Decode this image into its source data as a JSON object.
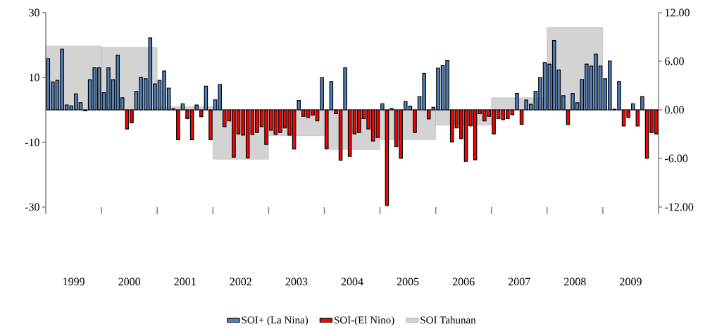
{
  "chart_data": {
    "type": "bar",
    "x": [
      1999.042,
      1999.125,
      1999.208,
      1999.292,
      1999.375,
      1999.458,
      1999.542,
      1999.625,
      1999.708,
      1999.792,
      1999.875,
      1999.958,
      2000.042,
      2000.125,
      2000.208,
      2000.292,
      2000.375,
      2000.458,
      2000.542,
      2000.625,
      2000.708,
      2000.792,
      2000.875,
      2000.958,
      2001.042,
      2001.125,
      2001.208,
      2001.292,
      2001.375,
      2001.458,
      2001.542,
      2001.625,
      2001.708,
      2001.792,
      2001.875,
      2001.958,
      2002.042,
      2002.125,
      2002.208,
      2002.292,
      2002.375,
      2002.458,
      2002.542,
      2002.625,
      2002.708,
      2002.792,
      2002.875,
      2002.958,
      2003.042,
      2003.125,
      2003.208,
      2003.292,
      2003.375,
      2003.458,
      2003.542,
      2003.625,
      2003.708,
      2003.792,
      2003.875,
      2003.958,
      2004.042,
      2004.125,
      2004.208,
      2004.292,
      2004.375,
      2004.458,
      2004.542,
      2004.625,
      2004.708,
      2004.792,
      2004.875,
      2004.958,
      2005.042,
      2005.125,
      2005.208,
      2005.292,
      2005.375,
      2005.458,
      2005.542,
      2005.625,
      2005.708,
      2005.792,
      2005.875,
      2005.958,
      2006.042,
      2006.125,
      2006.208,
      2006.292,
      2006.375,
      2006.458,
      2006.542,
      2006.625,
      2006.708,
      2006.792,
      2006.875,
      2006.958,
      2007.042,
      2007.125,
      2007.208,
      2007.292,
      2007.375,
      2007.458,
      2007.542,
      2007.625,
      2007.708,
      2007.792,
      2007.875,
      2007.958,
      2008.042,
      2008.125,
      2008.208,
      2008.292,
      2008.375,
      2008.458,
      2008.542,
      2008.625,
      2008.708,
      2008.792,
      2008.875,
      2008.958,
      2009.042,
      2009.125,
      2009.208,
      2009.292,
      2009.375,
      2009.458,
      2009.542,
      2009.625,
      2009.708,
      2009.792,
      2009.875,
      2009.958
    ],
    "series": [
      {
        "name": "SOI+ (La Nina)",
        "color": "#4f81bd",
        "values": [
          15.8,
          8.6,
          9.1,
          18.7,
          1.5,
          1.2,
          4.9,
          2.2,
          null,
          9.3,
          13.0,
          13.0,
          5.3,
          13.0,
          9.3,
          16.9,
          3.7,
          null,
          null,
          5.7,
          10.1,
          9.6,
          22.2,
          8.0,
          9.1,
          12.0,
          6.7,
          0.3,
          null,
          1.9,
          null,
          null,
          1.5,
          null,
          7.3,
          null,
          3.1,
          7.8,
          null,
          null,
          null,
          null,
          null,
          null,
          null,
          null,
          null,
          null,
          null,
          null,
          null,
          null,
          null,
          null,
          2.9,
          null,
          null,
          null,
          null,
          10.0,
          null,
          8.7,
          null,
          null,
          13.0,
          null,
          null,
          null,
          null,
          null,
          null,
          null,
          1.9,
          null,
          0.4,
          null,
          null,
          2.6,
          1.1,
          null,
          4.1,
          11.2,
          null,
          0.8,
          12.9,
          13.8,
          15.3,
          null,
          null,
          null,
          null,
          null,
          null,
          null,
          null,
          null,
          null,
          null,
          null,
          null,
          null,
          5.1,
          null,
          3.0,
          1.7,
          5.7,
          10.0,
          14.6,
          14.1,
          21.4,
          12.3,
          4.4,
          null,
          5.1,
          2.2,
          9.4,
          14.1,
          13.5,
          17.2,
          13.5,
          9.6,
          15.1,
          0.2,
          8.7,
          null,
          null,
          1.9,
          null,
          4.1,
          null,
          null,
          null
        ]
      },
      {
        "name": "SOI-(El Nino)",
        "color": "#ff0000",
        "values": [
          null,
          null,
          null,
          null,
          null,
          null,
          null,
          null,
          -0.3,
          null,
          null,
          null,
          null,
          null,
          null,
          null,
          null,
          -5.9,
          -4.0,
          null,
          null,
          null,
          null,
          null,
          null,
          null,
          null,
          null,
          -9.2,
          null,
          -2.7,
          -9.2,
          null,
          -2.1,
          null,
          -9.2,
          null,
          null,
          -5.2,
          -3.4,
          -14.6,
          -7.4,
          -7.8,
          -14.8,
          -7.6,
          -7.0,
          -5.2,
          -10.7,
          -6.3,
          -7.6,
          -7.0,
          -5.6,
          -7.8,
          -12.1,
          null,
          -2.0,
          -2.3,
          -1.6,
          -3.4,
          null,
          -12.0,
          null,
          -1.2,
          -15.6,
          null,
          -14.4,
          -7.4,
          -7.0,
          -2.7,
          -5.9,
          -9.6,
          -8.5,
          null,
          -29.5,
          null,
          -11.4,
          -14.9,
          null,
          null,
          -7.0,
          null,
          null,
          -2.8,
          null,
          null,
          null,
          null,
          -9.9,
          -5.6,
          -8.9,
          -15.9,
          -4.9,
          -15.4,
          -1.2,
          -3.4,
          -2.0,
          -7.4,
          -2.7,
          -3.0,
          -2.7,
          -1.5,
          null,
          -4.5,
          null,
          null,
          null,
          null,
          null,
          null,
          null,
          null,
          null,
          -4.5,
          null,
          null,
          null,
          null,
          null,
          null,
          null,
          null,
          null,
          null,
          null,
          -5.0,
          -2.3,
          null,
          -5.0,
          null,
          -14.9,
          -7.0,
          -7.4
        ]
      },
      {
        "name": "SOI Tahunan",
        "color": "#d3d3d3",
        "axis": "y2",
        "x": [
          1999.5,
          2000.5,
          2001.5,
          2002.5,
          2003.5,
          2004.5,
          2005.5,
          2006.5,
          2007.5,
          2008.5
        ],
        "values": [
          7.9,
          7.7,
          0.4,
          -6.1,
          -3.2,
          -4.9,
          -3.7,
          -1.9,
          1.5,
          10.2
        ]
      }
    ],
    "xlim": [
      1999,
      2010
    ],
    "xticks": [
      {
        "value": 1999,
        "label": null
      },
      {
        "value": 1999.5,
        "label": "1999"
      },
      {
        "value": 2000,
        "label": null
      },
      {
        "value": 2000.5,
        "label": "2000"
      },
      {
        "value": 2001,
        "label": null
      },
      {
        "value": 2001.5,
        "label": "2001"
      },
      {
        "value": 2002,
        "label": null
      },
      {
        "value": 2002.5,
        "label": "2002"
      },
      {
        "value": 2003,
        "label": null
      },
      {
        "value": 2003.5,
        "label": "2003"
      },
      {
        "value": 2004,
        "label": null
      },
      {
        "value": 2004.5,
        "label": "2004"
      },
      {
        "value": 2005,
        "label": null
      },
      {
        "value": 2005.5,
        "label": "2005"
      },
      {
        "value": 2006,
        "label": null
      },
      {
        "value": 2006.5,
        "label": "2006"
      },
      {
        "value": 2007,
        "label": null
      },
      {
        "value": 2007.5,
        "label": "2007"
      },
      {
        "value": 2008,
        "label": null
      },
      {
        "value": 2008.5,
        "label": "2008"
      },
      {
        "value": 2009,
        "label": null
      },
      {
        "value": 2009.5,
        "label": "2009"
      },
      {
        "value": 2010,
        "label": null
      }
    ],
    "ylim": [
      -30,
      30
    ],
    "yticks": [
      -30,
      -10,
      10,
      30
    ],
    "y2lim": [
      -12,
      12
    ],
    "y2ticks": [
      {
        "value": -12,
        "label": "-12.00"
      },
      {
        "value": -6,
        "label": "-6.00"
      },
      {
        "value": 0,
        "label": "0.00"
      },
      {
        "value": 6,
        "label": "6.00"
      },
      {
        "value": 12,
        "label": "12.00"
      }
    ],
    "legend": "bottom"
  }
}
